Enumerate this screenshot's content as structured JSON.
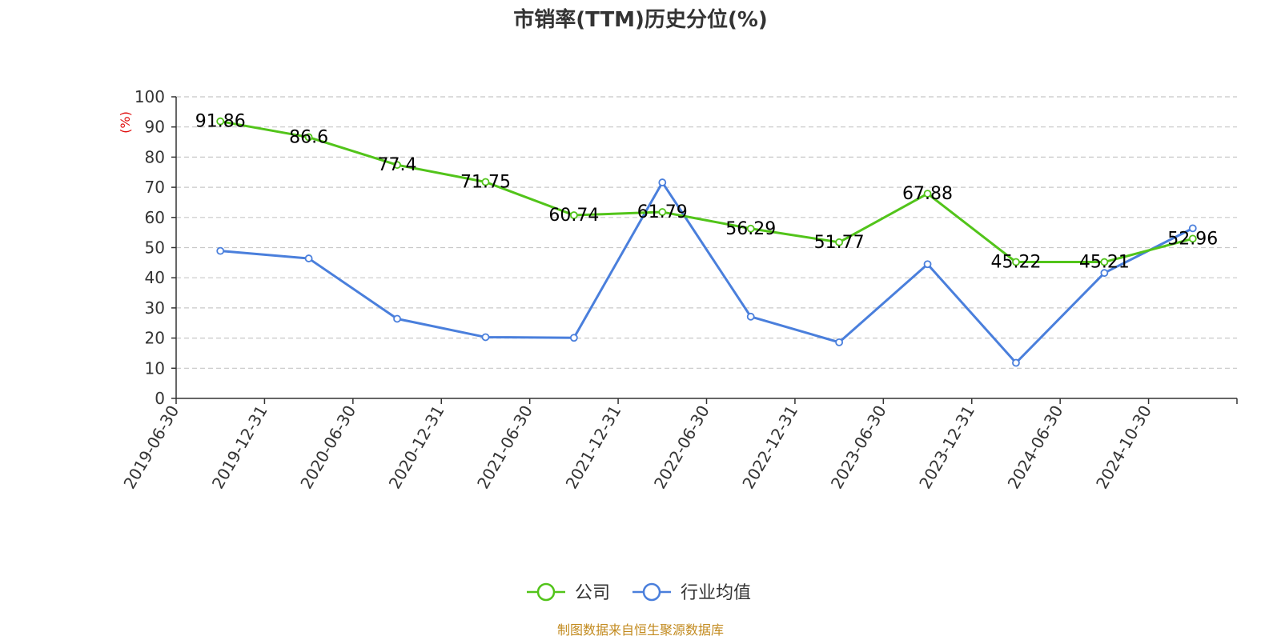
{
  "chart_data": {
    "type": "line",
    "title": "市销率(TTM)历史分位(%)",
    "ylabel": "(%)",
    "xlabel": "",
    "ylim": [
      0,
      100
    ],
    "yticks": [
      0,
      10,
      20,
      30,
      40,
      50,
      60,
      70,
      80,
      90,
      100
    ],
    "grid": true,
    "legend_position": "bottom-center",
    "categories": [
      "2019-06-30",
      "2019-12-31",
      "2020-06-30",
      "2020-12-31",
      "2021-06-30",
      "2021-12-31",
      "2022-06-30",
      "2022-12-31",
      "2023-06-30",
      "2023-12-31",
      "2024-06-30",
      "2024-10-30"
    ],
    "series": [
      {
        "name": "公司",
        "color": "#52c41a",
        "values": [
          91.86,
          86.6,
          77.4,
          71.75,
          60.74,
          61.79,
          56.29,
          51.77,
          67.88,
          45.22,
          45.21,
          52.96
        ],
        "labels": [
          "91.86",
          "86.6",
          "77.4",
          "71.75",
          "60.74",
          "61.79",
          "56.29",
          "51.77",
          "67.88",
          "45.22",
          "45.21",
          "52.96"
        ]
      },
      {
        "name": "行业均值",
        "color": "#4a7fdc",
        "values": [
          48.9,
          46.4,
          26.4,
          20.3,
          20.1,
          71.6,
          27.1,
          18.6,
          44.5,
          11.8,
          41.6,
          56.4
        ]
      }
    ],
    "source": "制图数据来自恒生聚源数据库"
  }
}
